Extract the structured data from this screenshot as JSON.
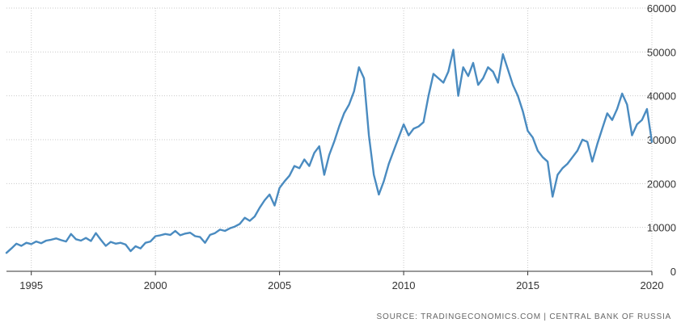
{
  "chart_data": {
    "type": "line",
    "title": "",
    "xlabel": "",
    "ylabel": "",
    "source": "SOURCE: TRADINGECONOMICS.COM | CENTRAL BANK OF RUSSIA",
    "xlim": [
      1994.0,
      2020.0
    ],
    "ylim": [
      0,
      60000
    ],
    "y_ticks": [
      "0",
      "10000",
      "20000",
      "30000",
      "40000",
      "50000",
      "60000"
    ],
    "x_ticks": [
      "1995",
      "2000",
      "2005",
      "2010",
      "2015",
      "2020"
    ],
    "y_axis_side": "right",
    "grid": true,
    "line_color": "#4a8bc0",
    "series": [
      {
        "x": [
          1994.0,
          1994.2,
          1994.4,
          1994.6,
          1994.8,
          1995.0,
          1995.2,
          1995.4,
          1995.6,
          1995.8,
          1996.0,
          1996.2,
          1996.4,
          1996.6,
          1996.8,
          1997.0,
          1997.2,
          1997.4,
          1997.6,
          1997.8,
          1998.0,
          1998.2,
          1998.4,
          1998.6,
          1998.8,
          1999.0,
          1999.2,
          1999.4,
          1999.6,
          1999.8,
          2000.0,
          2000.2,
          2000.4,
          2000.6,
          2000.8,
          2001.0,
          2001.2,
          2001.4,
          2001.6,
          2001.8,
          2002.0,
          2002.2,
          2002.4,
          2002.6,
          2002.8,
          2003.0,
          2003.2,
          2003.4,
          2003.6,
          2003.8,
          2004.0,
          2004.2,
          2004.4,
          2004.6,
          2004.8,
          2005.0,
          2005.2,
          2005.4,
          2005.6,
          2005.8,
          2006.0,
          2006.2,
          2006.4,
          2006.6,
          2006.8,
          2007.0,
          2007.2,
          2007.4,
          2007.6,
          2007.8,
          2008.0,
          2008.2,
          2008.4,
          2008.6,
          2008.8,
          2009.0,
          2009.2,
          2009.4,
          2009.6,
          2009.8,
          2010.0,
          2010.2,
          2010.4,
          2010.6,
          2010.8,
          2011.0,
          2011.2,
          2011.4,
          2011.6,
          2011.8,
          2012.0,
          2012.2,
          2012.4,
          2012.6,
          2012.8,
          2013.0,
          2013.2,
          2013.4,
          2013.6,
          2013.8,
          2014.0,
          2014.2,
          2014.4,
          2014.6,
          2014.8,
          2015.0,
          2015.2,
          2015.4,
          2015.6,
          2015.8,
          2016.0,
          2016.2,
          2016.4,
          2016.6,
          2016.8,
          2017.0,
          2017.2,
          2017.4,
          2017.6,
          2017.8,
          2018.0,
          2018.2,
          2018.4,
          2018.6,
          2018.8,
          2019.0,
          2019.2,
          2019.4,
          2019.6,
          2019.8,
          2020.0
        ],
        "values": [
          4200,
          5200,
          6300,
          5800,
          6500,
          6200,
          6800,
          6400,
          7000,
          7200,
          7500,
          7100,
          6800,
          8500,
          7300,
          7000,
          7600,
          6900,
          8700,
          7200,
          5800,
          6700,
          6300,
          6500,
          6100,
          4600,
          5700,
          5200,
          6500,
          6800,
          8000,
          8200,
          8500,
          8300,
          9200,
          8200,
          8600,
          8800,
          8000,
          7800,
          6500,
          8300,
          8700,
          9500,
          9200,
          9800,
          10200,
          10800,
          12200,
          11500,
          12500,
          14500,
          16200,
          17500,
          15000,
          19000,
          20500,
          21800,
          24000,
          23500,
          25500,
          24000,
          27000,
          28500,
          22000,
          26500,
          29500,
          33000,
          36000,
          38000,
          41000,
          46500,
          44000,
          31000,
          22000,
          17500,
          20500,
          24500,
          27500,
          30500,
          33500,
          31000,
          32500,
          33000,
          34000,
          40000,
          45000,
          44000,
          43000,
          45500,
          50500,
          40000,
          46500,
          44500,
          47500,
          42500,
          44000,
          46500,
          45500,
          43000,
          49500,
          46000,
          42500,
          40000,
          36500,
          32000,
          30500,
          27500,
          26000,
          25000,
          17000,
          22000,
          23500,
          24500,
          26000,
          27500,
          30000,
          29500,
          25000,
          29000,
          32500,
          36000,
          34500,
          37000,
          40500,
          38000,
          31000,
          33500,
          34500,
          37000,
          29500
        ]
      }
    ]
  }
}
